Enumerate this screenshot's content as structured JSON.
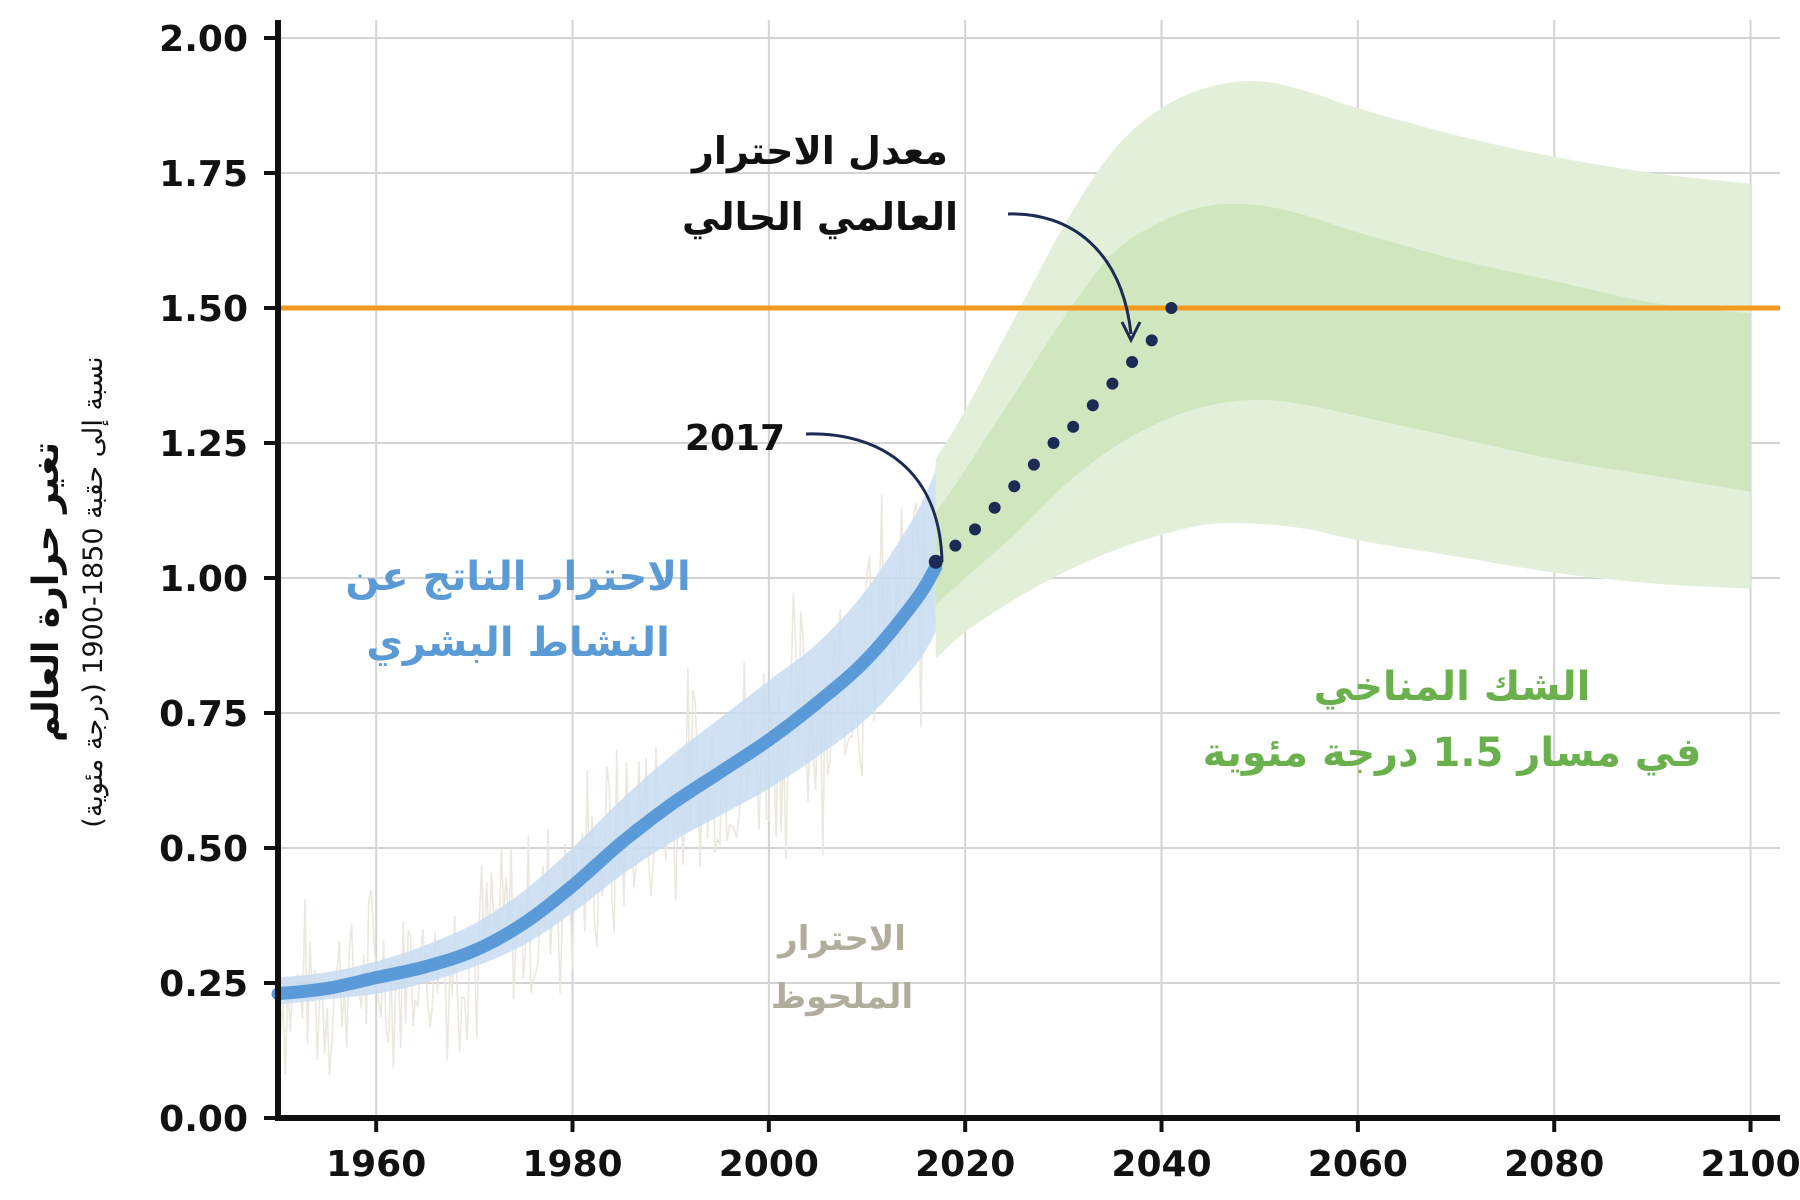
{
  "chart_data": {
    "type": "line",
    "xlim": [
      1950,
      2100
    ],
    "ylim": [
      0,
      2.0
    ],
    "grid": true,
    "x_ticks": [
      "1960",
      "1980",
      "2000",
      "2020",
      "2040",
      "2060",
      "2080",
      "2100"
    ],
    "y_ticks": [
      "0.00",
      "0.25",
      "0.50",
      "0.75",
      "1.00",
      "1.25",
      "1.50",
      "1.75",
      "2.00"
    ],
    "ylabel": "تغير حرارة العالم",
    "ylabel_sub": "نسبة إلى حقبة 1850-1900 (درجة مئوية)",
    "reference_line": {
      "y": 1.5,
      "label": "1.50",
      "color": "#f39a1e"
    },
    "series": [
      {
        "role": "human-induced-warming",
        "color": "#5a9ad8",
        "x": [
          1950,
          1955,
          1960,
          1965,
          1970,
          1975,
          1980,
          1985,
          1990,
          1995,
          2000,
          2005,
          2010,
          2015,
          2017
        ],
        "values": [
          0.23,
          0.24,
          0.26,
          0.28,
          0.31,
          0.36,
          0.43,
          0.51,
          0.58,
          0.64,
          0.7,
          0.77,
          0.85,
          0.96,
          1.02
        ],
        "low": [
          0.21,
          0.22,
          0.23,
          0.25,
          0.28,
          0.32,
          0.38,
          0.45,
          0.51,
          0.56,
          0.61,
          0.67,
          0.74,
          0.84,
          0.9
        ],
        "high": [
          0.26,
          0.27,
          0.29,
          0.32,
          0.36,
          0.42,
          0.5,
          0.59,
          0.67,
          0.74,
          0.81,
          0.88,
          0.98,
          1.12,
          1.2
        ]
      },
      {
        "role": "current-warming-rate-projection",
        "color": "#1b2b55",
        "style": "dotted",
        "x": [
          2017,
          2019,
          2021,
          2023,
          2025,
          2027,
          2029,
          2031,
          2033,
          2035,
          2037,
          2039,
          2041
        ],
        "values": [
          1.03,
          1.06,
          1.09,
          1.13,
          1.17,
          1.21,
          1.25,
          1.28,
          1.32,
          1.36,
          1.4,
          1.44,
          1.5
        ]
      }
    ],
    "bands": [
      {
        "role": "uncertainty-outer",
        "color": "#e2f0d9",
        "x": [
          2017,
          2020,
          2025,
          2030,
          2035,
          2040,
          2045,
          2050,
          2055,
          2060,
          2070,
          2080,
          2090,
          2100
        ],
        "low": [
          0.85,
          0.9,
          0.96,
          1.01,
          1.05,
          1.08,
          1.1,
          1.1,
          1.09,
          1.07,
          1.04,
          1.01,
          0.99,
          0.98
        ],
        "high": [
          1.22,
          1.31,
          1.48,
          1.65,
          1.79,
          1.87,
          1.91,
          1.92,
          1.9,
          1.87,
          1.82,
          1.78,
          1.75,
          1.73
        ]
      },
      {
        "role": "uncertainty-inner",
        "color": "#cfe6bf",
        "x": [
          2017,
          2020,
          2025,
          2030,
          2035,
          2040,
          2045,
          2050,
          2055,
          2060,
          2070,
          2080,
          2090,
          2100
        ],
        "low": [
          0.95,
          1.0,
          1.08,
          1.17,
          1.24,
          1.29,
          1.32,
          1.33,
          1.32,
          1.3,
          1.26,
          1.22,
          1.19,
          1.16
        ],
        "high": [
          1.12,
          1.2,
          1.34,
          1.48,
          1.6,
          1.66,
          1.69,
          1.69,
          1.67,
          1.64,
          1.59,
          1.55,
          1.51,
          1.49
        ]
      }
    ],
    "observed_noise": {
      "color": "#e8e6dc",
      "x_range": [
        1950,
        2017
      ]
    },
    "annotations": {
      "year_2017": "2017",
      "current_rate_line1": "معدل الاحترار",
      "current_rate_line2": "العالمي الحالي",
      "human_line1": "الاحترار الناتج عن",
      "human_line2": "النشاط البشري",
      "observed_line1": "الاحترار",
      "observed_line2": "الملحوظ",
      "uncertainty_line1": "الشك المناخي",
      "uncertainty_line2": "في مسار 1.5 درجة مئوية"
    },
    "colors": {
      "axis": "#111111",
      "grid": "#d4d4d4",
      "human_text": "#5b9bd5",
      "observed_text": "#b0ad9c",
      "uncertainty_text": "#6ab04c",
      "arrow": "#1b2b55"
    }
  }
}
